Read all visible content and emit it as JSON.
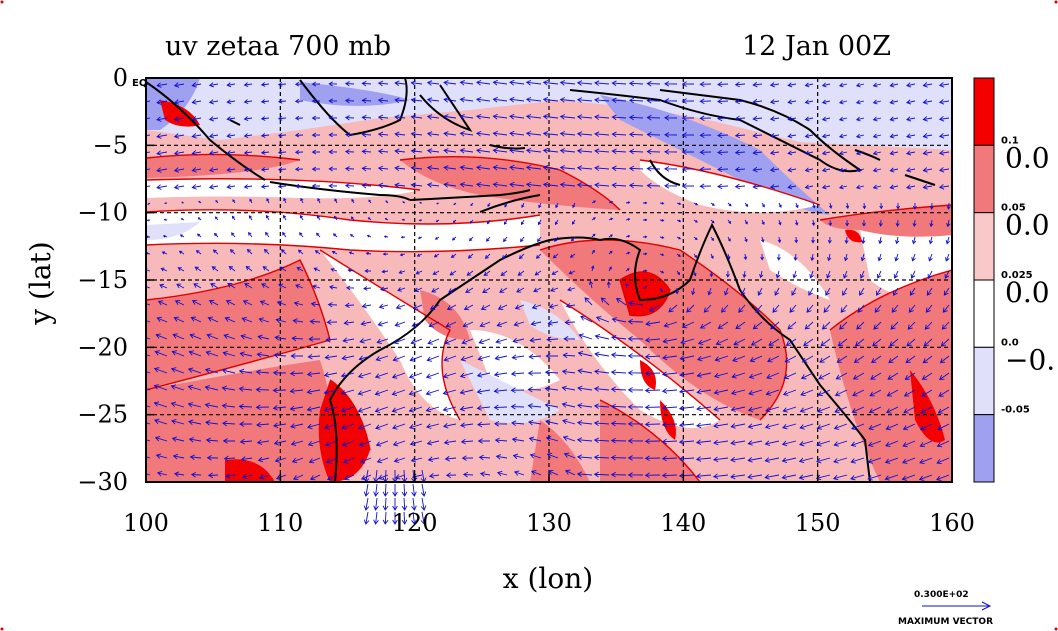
{
  "title_left": "uv zetaa 700 mb",
  "title_right": "12 Jan 00Z",
  "xlabel": "x (lon)",
  "ylabel": "y (lat)",
  "corner_label": "EQ",
  "x_ticks": [
    {
      "value": 100,
      "label": "100"
    },
    {
      "value": 110,
      "label": "110"
    },
    {
      "value": 120,
      "label": "120"
    },
    {
      "value": 130,
      "label": "130"
    },
    {
      "value": 140,
      "label": "140"
    },
    {
      "value": 150,
      "label": "150"
    },
    {
      "value": 160,
      "label": "160"
    }
  ],
  "y_ticks": [
    {
      "value": 0,
      "label": "0"
    },
    {
      "value": -5,
      "label": "−5"
    },
    {
      "value": -10,
      "label": "−10"
    },
    {
      "value": -15,
      "label": "−15"
    },
    {
      "value": -20,
      "label": "−20"
    },
    {
      "value": -25,
      "label": "−25"
    },
    {
      "value": -30,
      "label": "−30"
    }
  ],
  "colorbar": {
    "colors": [
      "#f50000",
      "#f2797b",
      "#f9c9c9",
      "#ffffff",
      "#e0e0fb",
      "#a0a0f0"
    ],
    "small_labels": [
      "0.1",
      "0.05",
      "0.025",
      "0.0",
      "-0.05"
    ],
    "big_labels": [
      "0.0",
      "0.0",
      "0.0",
      "−0."
    ]
  },
  "vector_key": {
    "value_label": "0.300E+02",
    "caption": "MAXIMUM VECTOR"
  },
  "chart_data": {
    "type": "contour_map_with_vectors",
    "x_range": [
      100,
      160
    ],
    "y_range": [
      -30,
      0
    ],
    "field": "zetaa",
    "level_mb": 700,
    "contour_levels": [
      -0.05,
      0.0,
      0.025,
      0.05,
      0.1
    ],
    "grid": true,
    "legend_placement": "right",
    "vector_color": "#1010d0",
    "contour_line_color": "#e00000",
    "coastline_color": "#000000"
  }
}
